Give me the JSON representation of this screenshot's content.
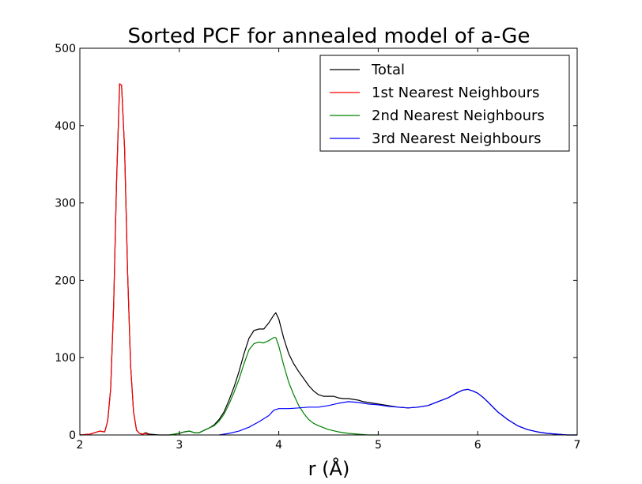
{
  "chart_data": {
    "type": "line",
    "title": "Sorted PCF for annealed model of a-Ge",
    "xlabel": "r (Å)",
    "ylabel": "",
    "xlim": [
      2,
      7
    ],
    "ylim": [
      0,
      500
    ],
    "xticks": [
      "2",
      "3",
      "4",
      "5",
      "6",
      "7"
    ],
    "yticks": [
      "0",
      "100",
      "200",
      "300",
      "400",
      "500"
    ],
    "grid": false,
    "legend_position": "top-right",
    "series": [
      {
        "name": "Total",
        "color": "#000000",
        "x": [
          2.0,
          2.1,
          2.15,
          2.2,
          2.25,
          2.28,
          2.31,
          2.34,
          2.37,
          2.4,
          2.42,
          2.45,
          2.48,
          2.51,
          2.54,
          2.57,
          2.6,
          2.63,
          2.66,
          2.7,
          2.8,
          2.9,
          3.0,
          3.05,
          3.1,
          3.15,
          3.2,
          3.25,
          3.3,
          3.35,
          3.4,
          3.45,
          3.5,
          3.55,
          3.6,
          3.65,
          3.7,
          3.75,
          3.8,
          3.85,
          3.9,
          3.95,
          3.97,
          4.0,
          4.05,
          4.1,
          4.15,
          4.2,
          4.25,
          4.3,
          4.35,
          4.4,
          4.45,
          4.5,
          4.55,
          4.6,
          4.65,
          4.7,
          4.75,
          4.8,
          4.85,
          4.9,
          5.0,
          5.1,
          5.2,
          5.3,
          5.4,
          5.5,
          5.6,
          5.7,
          5.8,
          5.85,
          5.9,
          5.95,
          6.0,
          6.05,
          6.1,
          6.2,
          6.3,
          6.4,
          6.5,
          6.6,
          6.7,
          6.8,
          6.9,
          7.0
        ],
        "y": [
          0,
          1,
          3,
          5,
          4,
          18,
          60,
          170,
          330,
          454,
          452,
          370,
          210,
          90,
          30,
          6,
          2,
          1,
          3,
          1,
          0,
          0,
          2,
          4,
          5,
          3,
          3,
          6,
          9,
          13,
          20,
          30,
          45,
          62,
          82,
          105,
          125,
          135,
          137,
          137,
          145,
          155,
          158,
          150,
          125,
          105,
          92,
          82,
          73,
          64,
          57,
          52,
          50,
          50,
          50,
          48,
          47,
          47,
          46,
          45,
          43,
          42,
          40,
          38,
          36,
          35,
          36,
          38,
          43,
          48,
          55,
          58,
          59,
          57,
          54,
          49,
          43,
          30,
          20,
          12,
          7,
          4,
          2,
          1,
          0,
          0
        ]
      },
      {
        "name": "1st Nearest Neighbours",
        "color": "#ff0000",
        "x": [
          2.0,
          2.1,
          2.15,
          2.2,
          2.25,
          2.28,
          2.31,
          2.34,
          2.37,
          2.4,
          2.42,
          2.45,
          2.48,
          2.51,
          2.54,
          2.57,
          2.6,
          2.63,
          2.66,
          2.7
        ],
        "y": [
          0,
          1,
          3,
          5,
          4,
          18,
          60,
          170,
          330,
          454,
          452,
          370,
          210,
          90,
          30,
          6,
          2,
          1,
          2,
          0
        ]
      },
      {
        "name": "2nd Nearest Neighbours",
        "color": "#008000",
        "x": [
          2.9,
          3.0,
          3.05,
          3.1,
          3.15,
          3.2,
          3.25,
          3.3,
          3.35,
          3.4,
          3.45,
          3.5,
          3.55,
          3.6,
          3.65,
          3.7,
          3.75,
          3.8,
          3.85,
          3.9,
          3.95,
          3.97,
          4.0,
          4.05,
          4.1,
          4.15,
          4.2,
          4.25,
          4.3,
          4.35,
          4.4,
          4.5,
          4.6,
          4.7,
          4.8,
          4.9,
          5.0
        ],
        "y": [
          0,
          2,
          4,
          5,
          3,
          3,
          6,
          9,
          12,
          18,
          27,
          40,
          55,
          72,
          92,
          110,
          118,
          120,
          119,
          122,
          126,
          126,
          115,
          90,
          68,
          52,
          38,
          28,
          20,
          15,
          12,
          7,
          4,
          2,
          1,
          0,
          0
        ]
      },
      {
        "name": "3rd Nearest Neighbours",
        "color": "#0000ff",
        "x": [
          3.4,
          3.5,
          3.6,
          3.7,
          3.8,
          3.9,
          3.95,
          4.0,
          4.1,
          4.2,
          4.3,
          4.4,
          4.5,
          4.6,
          4.7,
          4.8,
          4.9,
          5.0,
          5.1,
          5.2,
          5.3,
          5.4,
          5.5,
          5.6,
          5.7,
          5.8,
          5.85,
          5.9,
          5.95,
          6.0,
          6.05,
          6.1,
          6.2,
          6.3,
          6.4,
          6.5,
          6.6,
          6.7,
          6.8,
          6.9,
          7.0
        ],
        "y": [
          0,
          2,
          5,
          10,
          17,
          25,
          32,
          34,
          34,
          35,
          36,
          36,
          38,
          41,
          43,
          42,
          40,
          39,
          37,
          36,
          35,
          36,
          38,
          43,
          48,
          55,
          58,
          59,
          57,
          54,
          49,
          43,
          30,
          20,
          12,
          7,
          4,
          2,
          1,
          0,
          0
        ]
      }
    ]
  }
}
